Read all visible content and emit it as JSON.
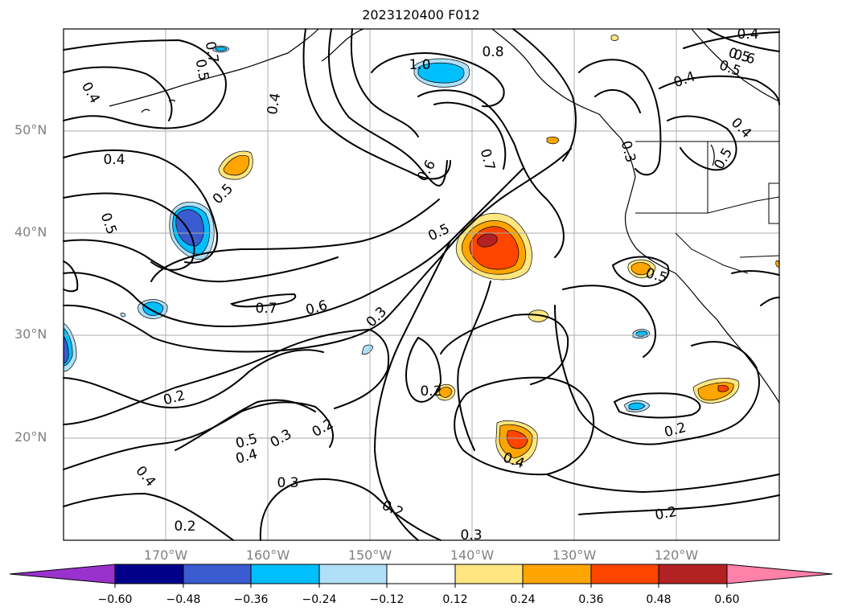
{
  "title": "2023120400 F012",
  "lat_labels": [
    "50°N",
    "40°N",
    "30°N",
    "20°N"
  ],
  "lon_labels": [
    "170°W",
    "160°W",
    "150°W",
    "140°W",
    "130°W",
    "120°W"
  ],
  "contour_labels": [
    "0.4",
    "0.5",
    "0.4",
    "0.5",
    "0.4",
    "1.0",
    "0.8",
    "0.7",
    "0.6",
    "0.4",
    "0.5",
    "0.4",
    "0.5",
    "0.4",
    "0.5",
    "0.3",
    "0.7",
    "0.6",
    "0.7",
    "0.6",
    "0.5",
    "0.5",
    "0.3",
    "0.2",
    "0.2",
    "0.5",
    "0.4",
    "0.3",
    "0.2",
    "0.4",
    "0.3",
    "0.2",
    "0.3",
    "0.2",
    "0.2",
    "0.4",
    "0.2",
    "0.5"
  ],
  "colorbar": {
    "ticks": [
      "−0.60",
      "−0.48",
      "−0.36",
      "−0.24",
      "−0.12",
      "0.12",
      "0.24",
      "0.36",
      "0.48",
      "0.60"
    ],
    "colors": [
      "#9932cc",
      "#00008b",
      "#3b5bd0",
      "#00bfff",
      "#b0e0f8",
      "#ffffff",
      "#ffe680",
      "#ffa500",
      "#ff4500",
      "#b22222",
      "#ff80a8"
    ]
  }
}
